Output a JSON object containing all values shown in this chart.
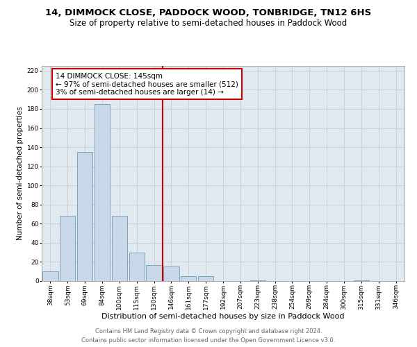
{
  "title": "14, DIMMOCK CLOSE, PADDOCK WOOD, TONBRIDGE, TN12 6HS",
  "subtitle": "Size of property relative to semi-detached houses in Paddock Wood",
  "xlabel": "Distribution of semi-detached houses by size in Paddock Wood",
  "ylabel": "Number of semi-detached properties",
  "footer_line1": "Contains HM Land Registry data © Crown copyright and database right 2024.",
  "footer_line2": "Contains public sector information licensed under the Open Government Licence v3.0.",
  "categories": [
    "38sqm",
    "53sqm",
    "69sqm",
    "84sqm",
    "100sqm",
    "115sqm",
    "130sqm",
    "146sqm",
    "161sqm",
    "177sqm",
    "192sqm",
    "207sqm",
    "223sqm",
    "238sqm",
    "254sqm",
    "269sqm",
    "284sqm",
    "300sqm",
    "315sqm",
    "331sqm",
    "346sqm"
  ],
  "values": [
    10,
    68,
    135,
    185,
    68,
    30,
    17,
    15,
    5,
    5,
    0,
    0,
    1,
    0,
    0,
    0,
    0,
    0,
    1,
    0,
    0
  ],
  "bar_color": "#c8d8e8",
  "bar_edge_color": "#5b8fa8",
  "vline_color": "#cc0000",
  "vline_x": 7.0,
  "annotation_text": "14 DIMMOCK CLOSE: 145sqm\n← 97% of semi-detached houses are smaller (512)\n3% of semi-detached houses are larger (14) →",
  "annotation_box_color": "#cc0000",
  "ylim": [
    0,
    225
  ],
  "yticks": [
    0,
    20,
    40,
    60,
    80,
    100,
    120,
    140,
    160,
    180,
    200,
    220
  ],
  "grid_color": "#cccccc",
  "bg_color": "#e0e8f0",
  "title_fontsize": 9.5,
  "subtitle_fontsize": 8.5,
  "xlabel_fontsize": 8,
  "ylabel_fontsize": 7.5,
  "tick_fontsize": 6.5,
  "annotation_fontsize": 7.5,
  "footer_fontsize": 6
}
